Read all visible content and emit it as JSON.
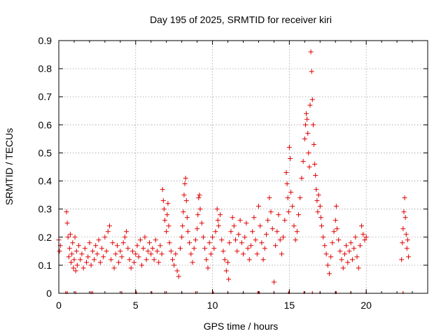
{
  "chart_data": {
    "type": "scatter",
    "title": "Day 195 of 2025, SRMTID for receiver kiri",
    "xlabel": "GPS time / hours",
    "ylabel": "SRMTID / TECUs",
    "xlim": [
      0,
      24
    ],
    "ylim": [
      0,
      0.9
    ],
    "x_ticks": [
      0,
      5,
      10,
      15,
      20
    ],
    "y_ticks": [
      0,
      0.1,
      0.2,
      0.3,
      0.4,
      0.5,
      0.6,
      0.7,
      0.8,
      0.9
    ],
    "grid": true,
    "legend": "none",
    "marker": "+",
    "color": "#e00000",
    "series": [
      {
        "name": "SRMTID",
        "points": [
          [
            0.0,
            0.19
          ],
          [
            0.05,
            0.15
          ],
          [
            0.1,
            0.17
          ],
          [
            0.5,
            0.29
          ],
          [
            0.55,
            0.25
          ],
          [
            0.6,
            0.2
          ],
          [
            0.65,
            0.13
          ],
          [
            0.7,
            0.16
          ],
          [
            0.75,
            0.21
          ],
          [
            0.8,
            0.11
          ],
          [
            0.85,
            0.14
          ],
          [
            0.9,
            0.18
          ],
          [
            0.95,
            0.09
          ],
          [
            1.0,
            0.12
          ],
          [
            1.05,
            0.2
          ],
          [
            1.1,
            0.08
          ],
          [
            1.15,
            0.15
          ],
          [
            1.2,
            0.1
          ],
          [
            1.3,
            0.17
          ],
          [
            1.4,
            0.12
          ],
          [
            1.5,
            0.14
          ],
          [
            1.6,
            0.09
          ],
          [
            1.7,
            0.16
          ],
          [
            1.8,
            0.11
          ],
          [
            1.9,
            0.13
          ],
          [
            2.0,
            0.18
          ],
          [
            2.1,
            0.1
          ],
          [
            2.2,
            0.15
          ],
          [
            2.3,
            0.12
          ],
          [
            2.4,
            0.17
          ],
          [
            2.5,
            0.14
          ],
          [
            2.6,
            0.19
          ],
          [
            2.7,
            0.11
          ],
          [
            2.8,
            0.16
          ],
          [
            2.9,
            0.13
          ],
          [
            3.0,
            0.2
          ],
          [
            3.1,
            0.15
          ],
          [
            3.2,
            0.22
          ],
          [
            3.3,
            0.24
          ],
          [
            3.4,
            0.12
          ],
          [
            3.5,
            0.18
          ],
          [
            3.6,
            0.09
          ],
          [
            3.7,
            0.14
          ],
          [
            3.8,
            0.17
          ],
          [
            3.9,
            0.11
          ],
          [
            4.0,
            0.15
          ],
          [
            4.1,
            0.13
          ],
          [
            4.2,
            0.18
          ],
          [
            4.3,
            0.2
          ],
          [
            4.4,
            0.22
          ],
          [
            4.5,
            0.16
          ],
          [
            4.6,
            0.12
          ],
          [
            4.7,
            0.09
          ],
          [
            4.8,
            0.15
          ],
          [
            4.9,
            0.11
          ],
          [
            5.0,
            0.14
          ],
          [
            5.1,
            0.17
          ],
          [
            5.2,
            0.13
          ],
          [
            5.3,
            0.19
          ],
          [
            5.4,
            0.1
          ],
          [
            5.5,
            0.16
          ],
          [
            5.6,
            0.2
          ],
          [
            5.7,
            0.12
          ],
          [
            5.8,
            0.15
          ],
          [
            5.9,
            0.18
          ],
          [
            6.0,
            0.14
          ],
          [
            6.1,
            0.16
          ],
          [
            6.2,
            0.12
          ],
          [
            6.3,
            0.19
          ],
          [
            6.4,
            0.15
          ],
          [
            6.5,
            0.11
          ],
          [
            6.6,
            0.17
          ],
          [
            6.7,
            0.14
          ],
          [
            6.75,
            0.37
          ],
          [
            6.8,
            0.33
          ],
          [
            6.85,
            0.3
          ],
          [
            6.9,
            0.26
          ],
          [
            7.0,
            0.22
          ],
          [
            7.05,
            0.28
          ],
          [
            7.1,
            0.32
          ],
          [
            7.15,
            0.24
          ],
          [
            7.2,
            0.18
          ],
          [
            7.3,
            0.15
          ],
          [
            7.4,
            0.12
          ],
          [
            7.5,
            0.1
          ],
          [
            7.6,
            0.14
          ],
          [
            7.7,
            0.08
          ],
          [
            7.8,
            0.06
          ],
          [
            7.9,
            0.16
          ],
          [
            8.0,
            0.2
          ],
          [
            8.05,
            0.24
          ],
          [
            8.1,
            0.29
          ],
          [
            8.15,
            0.35
          ],
          [
            8.2,
            0.39
          ],
          [
            8.25,
            0.41
          ],
          [
            8.3,
            0.33
          ],
          [
            8.35,
            0.27
          ],
          [
            8.4,
            0.22
          ],
          [
            8.5,
            0.18
          ],
          [
            8.6,
            0.14
          ],
          [
            8.7,
            0.11
          ],
          [
            8.8,
            0.16
          ],
          [
            8.9,
            0.19
          ],
          [
            9.0,
            0.23
          ],
          [
            9.05,
            0.28
          ],
          [
            9.1,
            0.34
          ],
          [
            9.15,
            0.35
          ],
          [
            9.2,
            0.3
          ],
          [
            9.3,
            0.25
          ],
          [
            9.4,
            0.2
          ],
          [
            9.5,
            0.16
          ],
          [
            9.6,
            0.12
          ],
          [
            9.7,
            0.09
          ],
          [
            9.8,
            0.18
          ],
          [
            9.9,
            0.14
          ],
          [
            10.0,
            0.2
          ],
          [
            10.1,
            0.16
          ],
          [
            10.2,
            0.22
          ],
          [
            10.3,
            0.3
          ],
          [
            10.35,
            0.26
          ],
          [
            10.4,
            0.24
          ],
          [
            10.5,
            0.28
          ],
          [
            10.6,
            0.19
          ],
          [
            10.7,
            0.15
          ],
          [
            10.8,
            0.12
          ],
          [
            10.9,
            0.08
          ],
          [
            11.0,
            0.11
          ],
          [
            11.05,
            0.05
          ],
          [
            11.1,
            0.18
          ],
          [
            11.2,
            0.22
          ],
          [
            11.3,
            0.27
          ],
          [
            11.4,
            0.24
          ],
          [
            11.5,
            0.19
          ],
          [
            11.6,
            0.15
          ],
          [
            11.7,
            0.21
          ],
          [
            11.8,
            0.26
          ],
          [
            11.9,
            0.18
          ],
          [
            12.0,
            0.14
          ],
          [
            12.1,
            0.2
          ],
          [
            12.2,
            0.25
          ],
          [
            12.3,
            0.16
          ],
          [
            12.4,
            0.12
          ],
          [
            12.5,
            0.17
          ],
          [
            12.6,
            0.22
          ],
          [
            12.7,
            0.27
          ],
          [
            12.8,
            0.19
          ],
          [
            12.9,
            0.14
          ],
          [
            13.0,
            0.31
          ],
          [
            13.1,
            0.24
          ],
          [
            13.2,
            0.18
          ],
          [
            13.3,
            0.12
          ],
          [
            13.4,
            0.16
          ],
          [
            13.5,
            0.21
          ],
          [
            13.6,
            0.26
          ],
          [
            13.7,
            0.34
          ],
          [
            13.8,
            0.29
          ],
          [
            13.9,
            0.23
          ],
          [
            14.0,
            0.04
          ],
          [
            14.1,
            0.17
          ],
          [
            14.2,
            0.22
          ],
          [
            14.3,
            0.28
          ],
          [
            14.4,
            0.19
          ],
          [
            14.5,
            0.14
          ],
          [
            14.6,
            0.2
          ],
          [
            14.7,
            0.26
          ],
          [
            14.8,
            0.43
          ],
          [
            14.85,
            0.39
          ],
          [
            14.9,
            0.34
          ],
          [
            14.95,
            0.29
          ],
          [
            15.0,
            0.52
          ],
          [
            15.05,
            0.48
          ],
          [
            15.1,
            0.36
          ],
          [
            15.2,
            0.31
          ],
          [
            15.3,
            0.24
          ],
          [
            15.4,
            0.19
          ],
          [
            15.5,
            0.22
          ],
          [
            15.6,
            0.28
          ],
          [
            15.7,
            0.34
          ],
          [
            15.8,
            0.41
          ],
          [
            15.9,
            0.47
          ],
          [
            16.0,
            0.55
          ],
          [
            16.05,
            0.6
          ],
          [
            16.1,
            0.64
          ],
          [
            16.15,
            0.62
          ],
          [
            16.2,
            0.57
          ],
          [
            16.25,
            0.5
          ],
          [
            16.3,
            0.45
          ],
          [
            16.35,
            0.67
          ],
          [
            16.4,
            0.86
          ],
          [
            16.45,
            0.79
          ],
          [
            16.5,
            0.69
          ],
          [
            16.55,
            0.6
          ],
          [
            16.6,
            0.53
          ],
          [
            16.65,
            0.46
          ],
          [
            16.7,
            0.42
          ],
          [
            16.75,
            0.37
          ],
          [
            16.8,
            0.33
          ],
          [
            16.85,
            0.29
          ],
          [
            16.9,
            0.35
          ],
          [
            17.0,
            0.31
          ],
          [
            17.05,
            0.27
          ],
          [
            17.1,
            0.24
          ],
          [
            17.2,
            0.2
          ],
          [
            17.3,
            0.17
          ],
          [
            17.4,
            0.14
          ],
          [
            17.5,
            0.1
          ],
          [
            17.6,
            0.07
          ],
          [
            17.7,
            0.13
          ],
          [
            17.8,
            0.18
          ],
          [
            17.9,
            0.22
          ],
          [
            18.0,
            0.26
          ],
          [
            18.05,
            0.31
          ],
          [
            18.1,
            0.23
          ],
          [
            18.2,
            0.19
          ],
          [
            18.3,
            0.15
          ],
          [
            18.4,
            0.12
          ],
          [
            18.5,
            0.09
          ],
          [
            18.6,
            0.14
          ],
          [
            18.7,
            0.17
          ],
          [
            18.8,
            0.11
          ],
          [
            18.9,
            0.15
          ],
          [
            19.0,
            0.18
          ],
          [
            19.1,
            0.12
          ],
          [
            19.2,
            0.16
          ],
          [
            19.3,
            0.2
          ],
          [
            19.4,
            0.13
          ],
          [
            19.5,
            0.09
          ],
          [
            19.6,
            0.17
          ],
          [
            19.7,
            0.24
          ],
          [
            19.8,
            0.21
          ],
          [
            19.9,
            0.19
          ],
          [
            20.0,
            0.2
          ],
          [
            22.3,
            0.12
          ],
          [
            22.35,
            0.18
          ],
          [
            22.4,
            0.23
          ],
          [
            22.45,
            0.29
          ],
          [
            22.5,
            0.34
          ],
          [
            22.55,
            0.27
          ],
          [
            22.6,
            0.21
          ],
          [
            22.65,
            0.16
          ],
          [
            22.7,
            0.19
          ],
          [
            22.75,
            0.13
          ]
        ]
      }
    ],
    "x_rug_marks": [
      0.45,
      0.55,
      1.1,
      2.1,
      2.2,
      4.1,
      5.0,
      5.05,
      6.05,
      6.9,
      8.0,
      8.9,
      10.0,
      10.05,
      11.0,
      12.0,
      12.95,
      13.05,
      14.0,
      14.95,
      15.0,
      15.95,
      16.5,
      17.0,
      18.0,
      18.05,
      19.0,
      20.0,
      22.4
    ]
  }
}
